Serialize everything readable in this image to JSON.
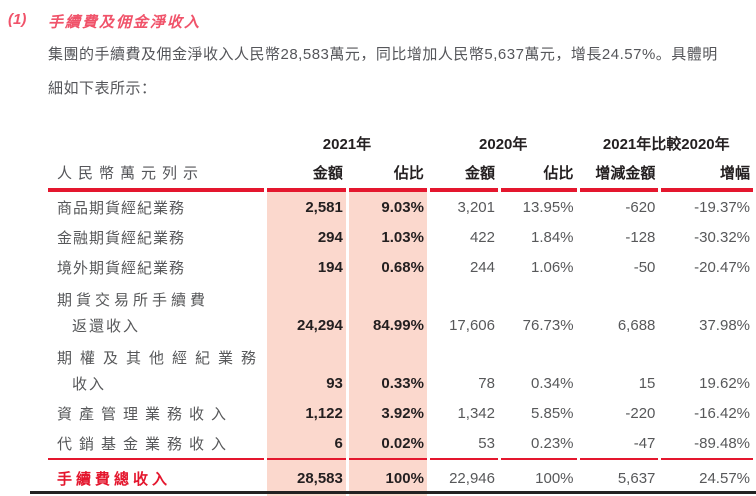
{
  "section": {
    "number": "(1)",
    "title": "手續費及佣金淨收入"
  },
  "paragraph": "集團的手續費及佣金淨收入人民幣28,583萬元，同比增加人民幣5,637萬元，增長24.57%。具體明細如下表所示：",
  "table": {
    "unit_label": "人民幣萬元列示",
    "groups": {
      "y2021": "2021年",
      "y2020": "2020年",
      "compare": "2021年比較2020年"
    },
    "headers": {
      "amount_2021": "金額",
      "pct_2021": "佔比",
      "amount_2020": "金額",
      "pct_2020": "佔比",
      "diff_amount": "增減金額",
      "diff_pct": "增幅"
    },
    "rows": [
      {
        "lines": [
          "商品期貨經紀業務"
        ],
        "values": [
          "2,581",
          "9.03%",
          "3,201",
          "13.95%",
          "-620",
          "-19.37%"
        ]
      },
      {
        "lines": [
          "金融期貨經紀業務"
        ],
        "values": [
          "294",
          "1.03%",
          "422",
          "1.84%",
          "-128",
          "-30.32%"
        ]
      },
      {
        "lines": [
          "境外期貨經紀業務"
        ],
        "values": [
          "194",
          "0.68%",
          "244",
          "1.06%",
          "-50",
          "-20.47%"
        ]
      },
      {
        "lines": [
          "期貨交易所手續費",
          "返還收入"
        ],
        "values": [
          "24,294",
          "84.99%",
          "17,606",
          "76.73%",
          "6,688",
          "37.98%"
        ]
      },
      {
        "lines": [
          "期權及其他經紀業務",
          "收入"
        ],
        "values": [
          "93",
          "0.33%",
          "78",
          "0.34%",
          "15",
          "19.62%"
        ]
      },
      {
        "lines": [
          "資產管理業務收入"
        ],
        "values": [
          "1,122",
          "3.92%",
          "1,342",
          "5.85%",
          "-220",
          "-16.42%"
        ]
      },
      {
        "lines": [
          "代銷基金業務收入"
        ],
        "values": [
          "6",
          "0.02%",
          "53",
          "0.23%",
          "-47",
          "-89.48%"
        ]
      }
    ],
    "total": {
      "label": "手續費總收入",
      "values": [
        "28,583",
        "100%",
        "22,946",
        "100%",
        "5,637",
        "24.57%"
      ]
    }
  },
  "colors": {
    "brand_red": "#e4172e",
    "title_red": "#f0536a",
    "highlight_pink": "#fbd8cd",
    "text_dark": "#231f20",
    "text_gray": "#57585a"
  }
}
